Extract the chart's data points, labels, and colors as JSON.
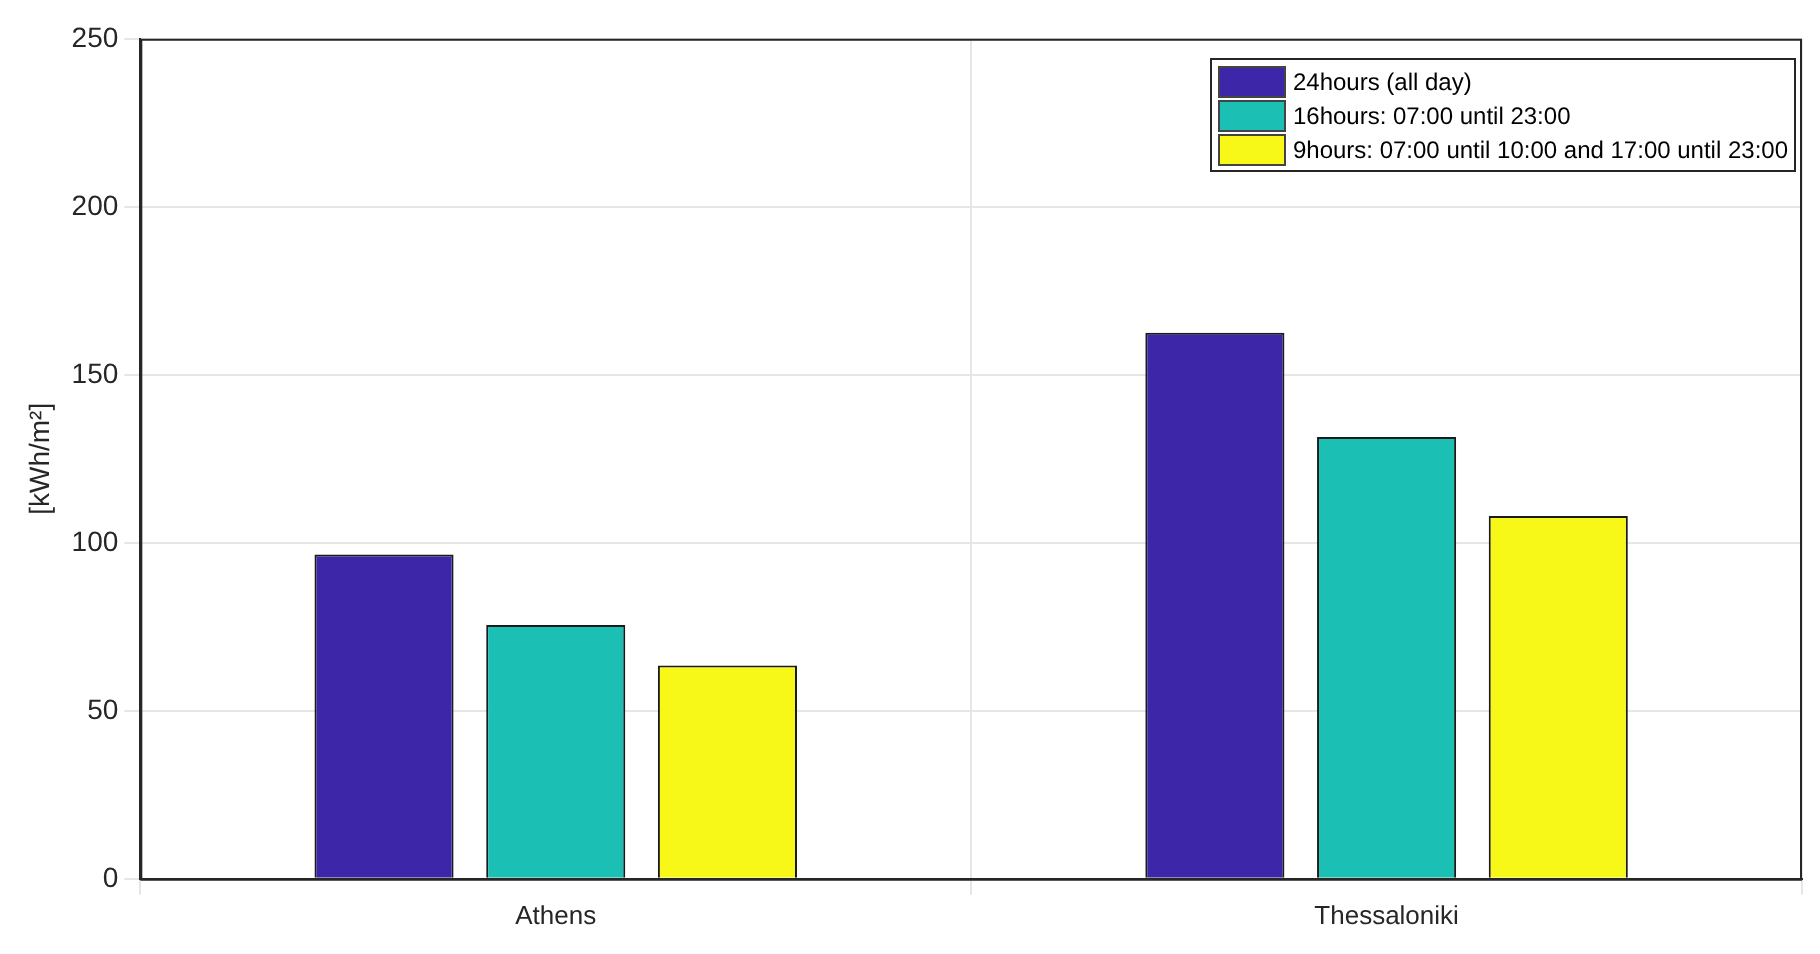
{
  "chart_data": {
    "type": "bar",
    "ylabel": "[kWh/m²]",
    "categories": [
      "Athens",
      "Thessaloniki"
    ],
    "series": [
      {
        "name": "24hours (all day)",
        "color": "#3e26a8",
        "values": [
          96.5,
          162.5
        ]
      },
      {
        "name": "16hours: 07:00 until 23:00",
        "color": "#1bbfb3",
        "values": [
          75.5,
          131.5
        ]
      },
      {
        "name": "9hours: 07:00 until 10:00 and 17:00 until 23:00",
        "color": "#f8f818",
        "values": [
          63.5,
          108
        ]
      }
    ],
    "ylim": [
      0,
      250
    ],
    "yticks": [
      0,
      50,
      100,
      150,
      200,
      250
    ],
    "grid": true,
    "legend": "top right"
  }
}
